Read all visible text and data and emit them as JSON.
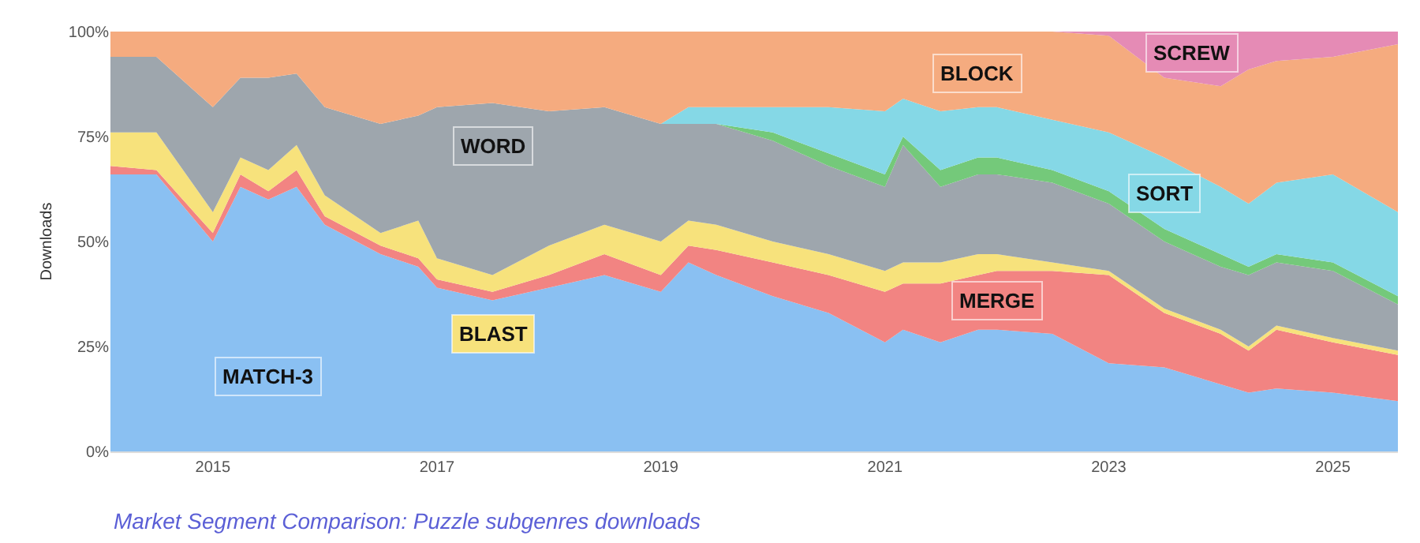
{
  "chart_data": {
    "type": "area",
    "stacked": true,
    "ylabel": "Downloads",
    "legend": false,
    "grid": true,
    "annotations": [
      "Market Segment Comparison: Puzzle subgenres downloads"
    ],
    "x": [
      "2014-02",
      "2014-07",
      "2015-01",
      "2015-04",
      "2015-07",
      "2015-10",
      "2016-01",
      "2016-07",
      "2016-11",
      "2017-01",
      "2017-07",
      "2018-01",
      "2018-07",
      "2019-01",
      "2019-04",
      "2019-07",
      "2020-01",
      "2020-07",
      "2021-01",
      "2021-03",
      "2021-07",
      "2021-11",
      "2022-01",
      "2022-07",
      "2023-01",
      "2023-07",
      "2024-01",
      "2024-04",
      "2024-07",
      "2025-01",
      "2025-08"
    ],
    "xlim": [
      "2014-02",
      "2025-08"
    ],
    "xticks": [
      {
        "value": "2015-01",
        "label": "2015"
      },
      {
        "value": "2017-01",
        "label": "2017"
      },
      {
        "value": "2019-01",
        "label": "2019"
      },
      {
        "value": "2021-01",
        "label": "2021"
      },
      {
        "value": "2023-01",
        "label": "2023"
      },
      {
        "value": "2025-01",
        "label": "2025"
      }
    ],
    "ylim": [
      0,
      100
    ],
    "yticks": [
      {
        "value": 0,
        "label": "0%"
      },
      {
        "value": 25,
        "label": "25%"
      },
      {
        "value": 50,
        "label": "50%"
      },
      {
        "value": 75,
        "label": "75%"
      },
      {
        "value": 100,
        "label": "100%"
      }
    ],
    "series": [
      {
        "name": "MATCH-3",
        "color": "#8ac0f2",
        "values": [
          66,
          66,
          50,
          63,
          60,
          63,
          54,
          47,
          44,
          39,
          36,
          39,
          42,
          38,
          45,
          42,
          37,
          33,
          26,
          29,
          26,
          29,
          29,
          28,
          21,
          20,
          16,
          14,
          15,
          14,
          12
        ]
      },
      {
        "name": "MERGE",
        "color": "#f28482",
        "values": [
          2,
          1,
          2,
          3,
          2,
          4,
          2,
          2,
          2,
          2,
          2,
          3,
          5,
          4,
          4,
          6,
          8,
          9,
          12,
          11,
          14,
          13,
          14,
          15,
          21,
          13,
          12,
          10,
          14,
          12,
          11
        ]
      },
      {
        "name": "BLAST",
        "color": "#f7e27c",
        "values": [
          8,
          9,
          5,
          4,
          5,
          6,
          5,
          3,
          9,
          5,
          4,
          7,
          7,
          8,
          6,
          6,
          5,
          5,
          5,
          5,
          5,
          5,
          4,
          2,
          1,
          1,
          1,
          1,
          1,
          1,
          1
        ]
      },
      {
        "name": "WORD",
        "color": "#9ea6ad",
        "values": [
          18,
          18,
          25,
          19,
          22,
          17,
          21,
          26,
          25,
          36,
          41,
          32,
          28,
          28,
          23,
          24,
          24,
          21,
          20,
          28,
          18,
          19,
          19,
          19,
          16,
          16,
          15,
          17,
          15,
          16,
          11
        ]
      },
      {
        "color": "#74c97a",
        "values": [
          0,
          0,
          0,
          0,
          0,
          0,
          0,
          0,
          0,
          0,
          0,
          0,
          0,
          0,
          0,
          0,
          2,
          3,
          3,
          2,
          4,
          4,
          4,
          3,
          3,
          3,
          3,
          2,
          2,
          2,
          2
        ]
      },
      {
        "name": "SORT",
        "color": "#85d8e6",
        "values": [
          0,
          0,
          0,
          0,
          0,
          0,
          0,
          0,
          0,
          0,
          0,
          0,
          0,
          0,
          4,
          4,
          6,
          11,
          15,
          9,
          14,
          12,
          12,
          12,
          14,
          17,
          16,
          15,
          17,
          21,
          20
        ]
      },
      {
        "name": "BLOCK",
        "color": "#f5ab7f",
        "values": [
          6,
          6,
          18,
          11,
          11,
          10,
          18,
          22,
          20,
          18,
          17,
          19,
          18,
          22,
          18,
          18,
          18,
          18,
          19,
          16,
          19,
          18,
          18,
          21,
          23,
          19,
          24,
          32,
          29,
          28,
          40
        ]
      },
      {
        "name": "SCREW",
        "color": "#e58bb5",
        "values": [
          0,
          0,
          0,
          0,
          0,
          0,
          0,
          0,
          0,
          0,
          0,
          0,
          0,
          0,
          0,
          0,
          0,
          0,
          0,
          0,
          0,
          0,
          0,
          0,
          1,
          11,
          13,
          9,
          7,
          6,
          3
        ]
      }
    ]
  }
}
